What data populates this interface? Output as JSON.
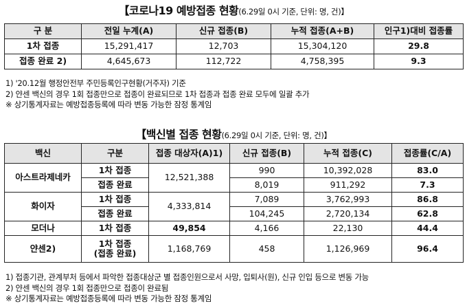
{
  "section1": {
    "title": "【코로나19 예방접종 현황",
    "title_sub": "(6.29일 0시 기준, 단위: 명, 건)】",
    "headers": [
      "구 분",
      "전일 누계(A)",
      "신규 접종(B)",
      "누적 접종(A+B)",
      "인구1)대비 접종률"
    ],
    "rows": [
      [
        "1차 접종",
        "15,291,417",
        "12,703",
        "15,304,120",
        "29.8"
      ],
      [
        "접종 완료 2)",
        "4,645,673",
        "112,722",
        "4,758,395",
        "9.3"
      ]
    ],
    "notes": [
      "1) '20.12월 행정안전부 주민등록인구현황(거주자) 기준",
      "2) 얀센 백신의 경우 1회 접종만으로 접종이 완료되므로 1차 접종과 접종 완료 모두에 일괄 추가",
      "※ 상기통계자료는 예방접종등록에 따라 변동 가능한 잠정 통계임"
    ]
  },
  "section2": {
    "title": "【백신별 접종 현황",
    "title_sub": "(6.29일 0시 기준, 단위: 명, 건)】",
    "headers": [
      "백신",
      "구분",
      "접종 대상자(A)1)",
      "신규 접종(B)",
      "누적 접종(C)",
      "접종률(C/A)"
    ],
    "vaccines": [
      {
        "name": "아스트라제네카",
        "target": "12,521,388",
        "rows": [
          [
            "1차 접종",
            "990",
            "10,392,028",
            "83.0"
          ],
          [
            "접종 완료",
            "8,019",
            "911,292",
            "7.3"
          ]
        ]
      },
      {
        "name": "화이자",
        "target": "4,333,814",
        "rows": [
          [
            "1차 접종",
            "7,089",
            "3,762,993",
            "86.8"
          ],
          [
            "접종 완료",
            "104,245",
            "2,720,134",
            "62.8"
          ]
        ]
      },
      {
        "name": "모더나",
        "target": "49,854",
        "rows": [
          [
            "1차 접종",
            "4,166",
            "22,130",
            "44.4"
          ]
        ]
      },
      {
        "name": "얀센2)",
        "target": "1,168,769",
        "rows": [
          [
            "1차 접종\n(접종 완료)",
            "458",
            "1,126,969",
            "96.4"
          ]
        ]
      }
    ],
    "notes": [
      "1) 접종기관, 관계부처 등에서 파악한 접종대상군 별 접종인원으로서 사망, 입퇴사(원), 신규 인입 등으로 변동 가능",
      "2) 얀센 백신의 경우 1회 접종만으로 접종이 완료됨",
      "※ 상기통계자료는 예방접종등록에 따라 변동 가능한 잠정 통계임"
    ]
  }
}
